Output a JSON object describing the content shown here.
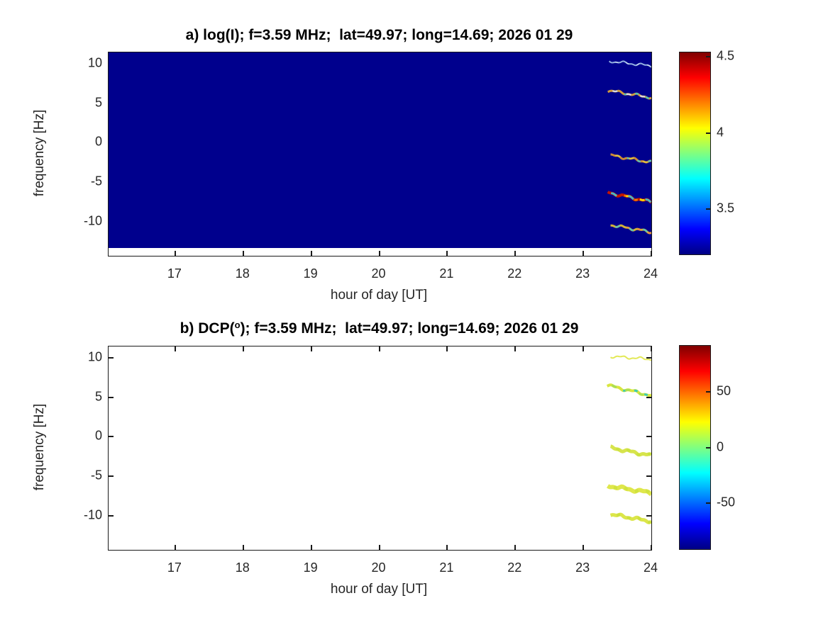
{
  "figure": {
    "background": "#ffffff",
    "axes_color": "#1a1a1a"
  },
  "colormap_stops": [
    "#7f0000",
    "#ff0000",
    "#ff8000",
    "#ffff00",
    "#80ff80",
    "#00ffff",
    "#0080ff",
    "#0000ff",
    "#000084"
  ],
  "chart_data": [
    {
      "type": "heatmap",
      "panel": "a",
      "title": "a) log(I); f=3.59 MHz;  lat=49.97; long=14.69; 2026 01 29",
      "title_parts": {
        "pre": "a) log(I); f=3.59 MHz;  lat=49.97; long=14.69; 2026 01 29",
        "sup": "",
        "post": ""
      },
      "xlabel": "hour of day [UT]",
      "ylabel": "frequency [Hz]",
      "xlim": [
        16.02,
        24
      ],
      "ylim": [
        -14.3,
        11.4
      ],
      "xticks": [
        17,
        18,
        19,
        20,
        21,
        22,
        23,
        24
      ],
      "yticks": [
        10,
        5,
        0,
        -5,
        -10
      ],
      "grid": false,
      "legend": "none",
      "colormap": "jet",
      "image_fill_color": "#00008d",
      "image_extent_hz": [
        -13.3,
        11.4
      ],
      "colorbar": {
        "min": 3.2,
        "max": 4.53,
        "ticks": [
          4.5,
          4,
          3.5
        ],
        "position": "right"
      },
      "traces": [
        {
          "name": "echo-trace",
          "hour_start": 23.38,
          "hour_end": 24.0,
          "f_start": 10.3,
          "f_end": 9.7,
          "width": 2,
          "colors": [
            "#93b1e0",
            "#c8d8f0"
          ]
        },
        {
          "name": "echo-trace",
          "hour_start": 23.36,
          "hour_end": 24.0,
          "f_start": 6.6,
          "f_end": 5.7,
          "width": 3,
          "colors": [
            "#cf9a3e",
            "#45c4bd",
            "#d9d9ea"
          ]
        },
        {
          "name": "echo-trace",
          "hour_start": 23.4,
          "hour_end": 24.0,
          "f_start": -1.6,
          "f_end": -2.5,
          "width": 3,
          "colors": [
            "#cd8a35",
            "#4fc0c0",
            "#e0c040"
          ]
        },
        {
          "name": "echo-trace",
          "hour_start": 23.36,
          "hour_end": 24.0,
          "f_start": -6.3,
          "f_end": -7.5,
          "width": 4,
          "colors": [
            "#c01500",
            "#f07800",
            "#ffd900",
            "#45b8c8"
          ]
        },
        {
          "name": "echo-trace",
          "hour_start": 23.4,
          "hour_end": 24.0,
          "f_start": -10.4,
          "f_end": -11.3,
          "width": 3,
          "colors": [
            "#d3b238",
            "#ee8840",
            "#52c6c0"
          ]
        }
      ]
    },
    {
      "type": "heatmap",
      "panel": "b",
      "title": "b) DCP(o); f=3.59 MHz;  lat=49.97; long=14.69; 2026 01 29",
      "title_parts": {
        "pre": "b) DCP(",
        "sup": "o",
        "post": "); f=3.59 MHz;  lat=49.97; long=14.69; 2026 01 29"
      },
      "xlabel": "hour of day [UT]",
      "ylabel": "frequency [Hz]",
      "xlim": [
        16.02,
        24
      ],
      "ylim": [
        -14.3,
        11.4
      ],
      "xticks": [
        17,
        18,
        19,
        20,
        21,
        22,
        23,
        24
      ],
      "yticks": [
        10,
        5,
        0,
        -5,
        -10
      ],
      "grid": false,
      "legend": "none",
      "colormap": "jet",
      "image_fill_color": "",
      "image_extent_hz": null,
      "colorbar": {
        "min": -91,
        "max": 91,
        "ticks": [
          50,
          0,
          -50
        ],
        "position": "right"
      },
      "traces": [
        {
          "name": "echo-trace",
          "hour_start": 23.4,
          "hour_end": 24.0,
          "f_start": 10.15,
          "f_end": 9.8,
          "width": 2,
          "colors": [
            "#e3e957"
          ]
        },
        {
          "name": "echo-trace",
          "hour_start": 23.35,
          "hour_end": 24.0,
          "f_start": 6.5,
          "f_end": 5.2,
          "width": 4,
          "colors": [
            "#d9e63f",
            "#3bcdb2",
            "#abdf52"
          ]
        },
        {
          "name": "echo-trace",
          "hour_start": 23.4,
          "hour_end": 24.0,
          "f_start": -1.4,
          "f_end": -2.4,
          "width": 5,
          "colors": [
            "#d7e44c",
            "#c9e23e"
          ]
        },
        {
          "name": "echo-trace",
          "hour_start": 23.36,
          "hour_end": 24.0,
          "f_start": -6.2,
          "f_end": -7.1,
          "width": 6,
          "colors": [
            "#dfe74b",
            "#cfe23f"
          ]
        },
        {
          "name": "echo-trace",
          "hour_start": 23.4,
          "hour_end": 24.0,
          "f_start": -9.8,
          "f_end": -10.7,
          "width": 5,
          "colors": [
            "#dce64a",
            "#cce03e"
          ]
        }
      ]
    }
  ]
}
